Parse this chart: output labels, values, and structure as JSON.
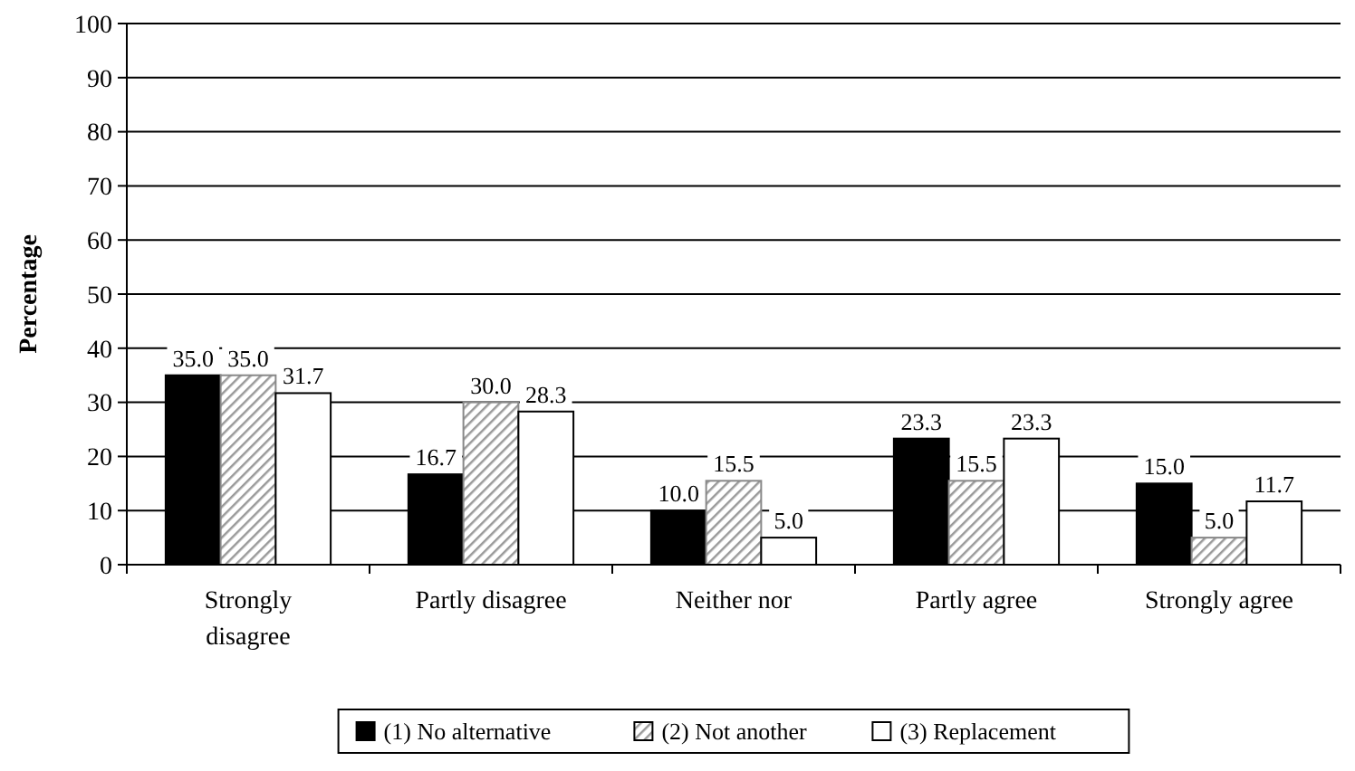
{
  "chart_data": {
    "type": "bar",
    "ylabel": "Percentage",
    "categories": [
      "Strongly disagree",
      "Partly disagree",
      "Neither nor",
      "Partly agree",
      "Strongly agree"
    ],
    "series": [
      {
        "name": "(1) No alternative",
        "color": "#000000",
        "values": [
          35.0,
          16.7,
          10.0,
          23.3,
          15.0
        ],
        "value_labels": [
          "35.0",
          "16.7",
          "10.0",
          "23.3",
          "15.0"
        ]
      },
      {
        "name": "(2) Not another",
        "color": "#888888",
        "values": [
          35.0,
          30.0,
          15.5,
          15.5,
          5.0
        ],
        "value_labels": [
          "35.0",
          "30.0",
          "15.5",
          "15.5",
          "5.0"
        ]
      },
      {
        "name": "(3) Replacement",
        "color": "#ffffff",
        "values": [
          31.7,
          28.3,
          5.0,
          23.3,
          11.7
        ],
        "value_labels": [
          "31.7",
          "28.3",
          "5.0",
          "23.3",
          "11.7"
        ]
      }
    ],
    "ylim": [
      0,
      100
    ],
    "yticks": [
      0,
      10,
      20,
      30,
      40,
      50,
      60,
      70,
      80,
      90,
      100
    ],
    "grid": "y",
    "legend": "bottom"
  }
}
